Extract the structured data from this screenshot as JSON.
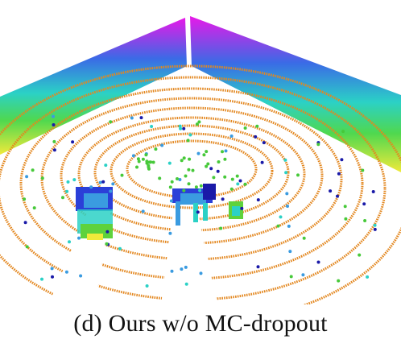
{
  "caption": {
    "label": "(d)",
    "text": "Ours w/o MC-dropout"
  },
  "scene": {
    "colors": {
      "ground_rings": "#e3871f",
      "wall_bottom": "#f0ea3a",
      "wall_band_green": "#4fd84f",
      "wall_band_cyan": "#2bd1c6",
      "wall_band_blue": "#3a6be6",
      "wall_top": "#e818e8",
      "object_blue": "#2b3fd8",
      "object_cyan": "#3a9be0",
      "object_green": "#5ed23c",
      "scatter_blue": "#1a1aa8",
      "scatter_green": "#47c93a"
    }
  }
}
